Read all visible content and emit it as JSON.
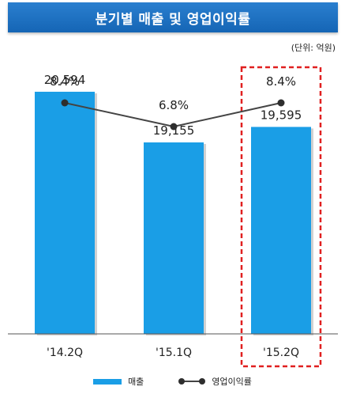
{
  "title": "분기별 매출 및 영업이익률",
  "unit_label": "(단위: 억원)",
  "legend": {
    "bar_label": "매출",
    "line_label": "영업이익률"
  },
  "colors": {
    "title_bg": "#1a6fc4",
    "bar": "#1a9ee6",
    "line": "#444444",
    "highlight": "#e02020"
  },
  "chart_data": {
    "type": "bar",
    "categories": [
      "'14.2Q",
      "'15.1Q",
      "'15.2Q"
    ],
    "series": [
      {
        "name": "매출",
        "type": "bar",
        "values": [
          20594,
          19155,
          19595
        ],
        "labels": [
          "20,594",
          "19,155",
          "19,595"
        ]
      },
      {
        "name": "영업이익률",
        "type": "line",
        "values": [
          8.4,
          6.8,
          8.4
        ],
        "labels": [
          "8.4%",
          "6.8%",
          "8.4%"
        ]
      }
    ],
    "highlighted_category": "'15.2Q",
    "grid": false,
    "legend_position": "bottom"
  }
}
